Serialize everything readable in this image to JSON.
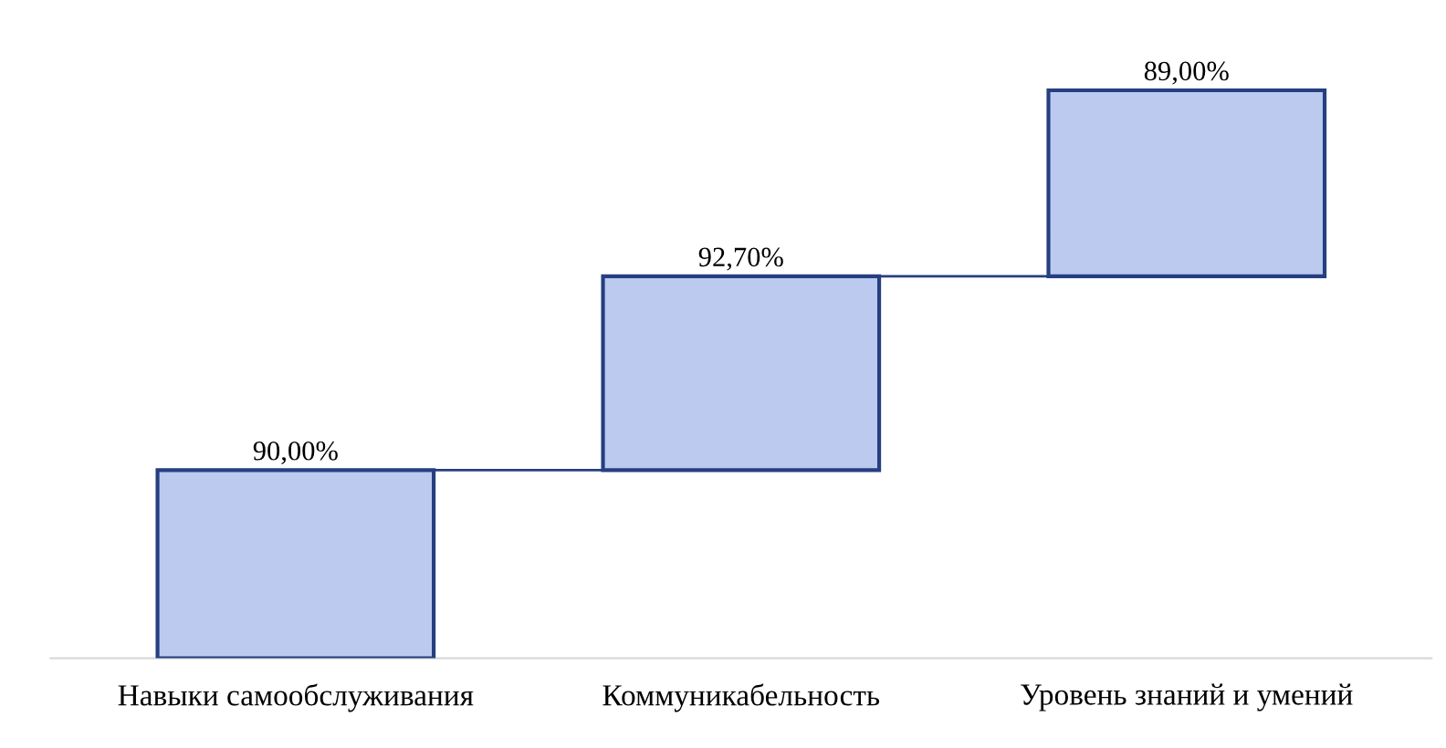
{
  "chart_data": {
    "type": "other",
    "categories": [
      "Навыки самообслуживания",
      "Коммуникабельность",
      "Уровень знаний и умений"
    ],
    "values": [
      90.0,
      92.7,
      89.0
    ],
    "value_labels": [
      "90,00%",
      "92,70%",
      "89,00%"
    ],
    "color": "#bccaf0"
  }
}
